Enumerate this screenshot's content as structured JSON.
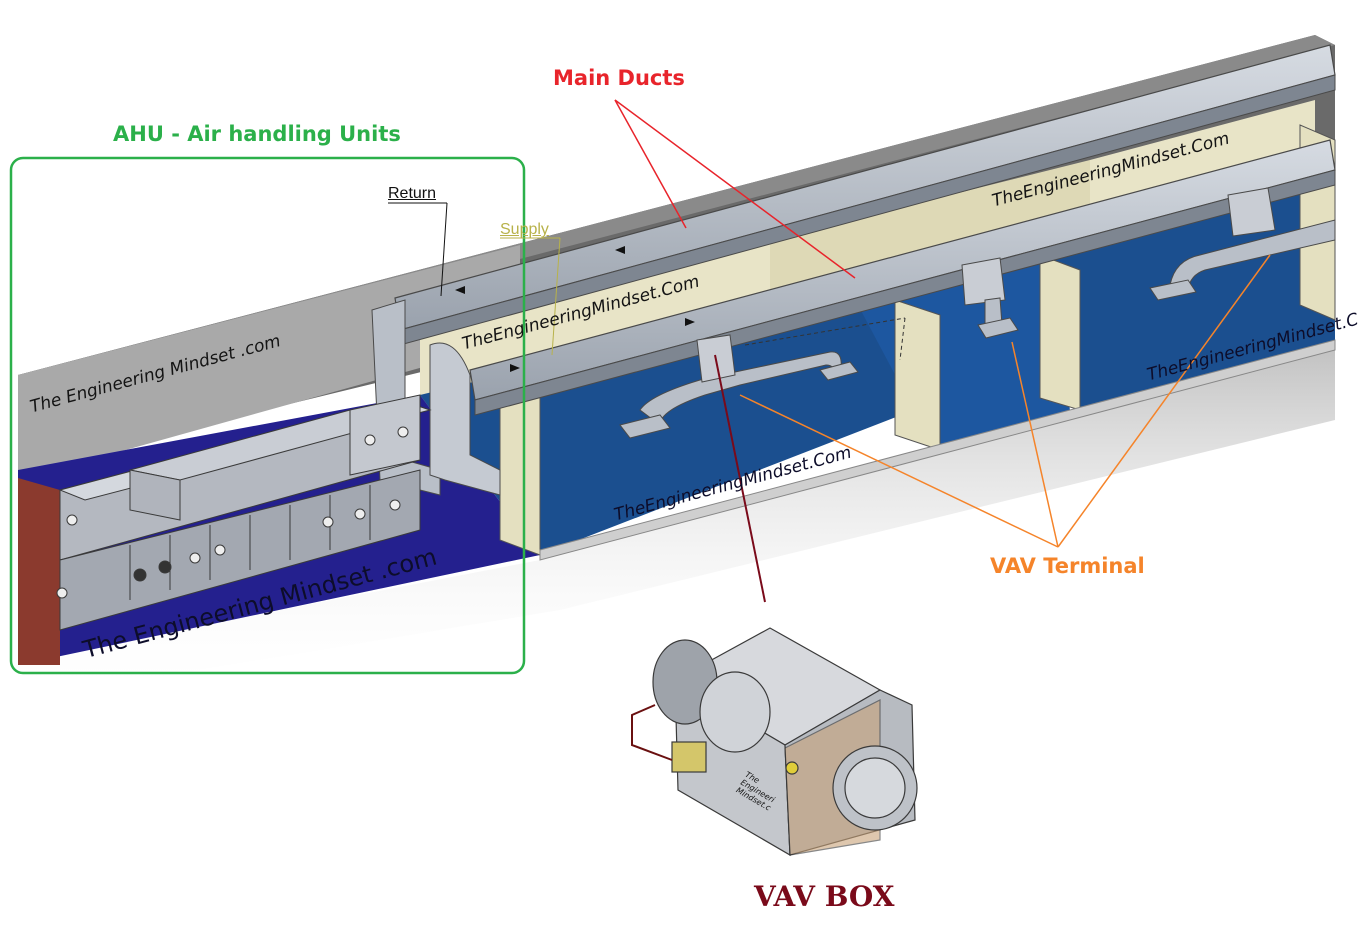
{
  "labels": {
    "ahu": "AHU - Air handling Units",
    "main_ducts": "Main Ducts",
    "vav_terminal": "VAV Terminal",
    "vav_box": "VAV BOX",
    "return": "Return",
    "supply": "Supply"
  },
  "watermarks": [
    "The Engineering Mindset .com",
    "TheEngineeringMindset.Com",
    "TheEngineeringMindset.Com",
    "TheEngineeringMindset.Com",
    "TheEngineeringMindset.Com",
    "The Engineering Mindset .com"
  ],
  "box_watermark": [
    "The",
    "Engineeri",
    "Mindset.c"
  ],
  "colors": {
    "ahu": "#2bb04a",
    "main_ducts": "#e8242b",
    "vav_terminal": "#f5842a",
    "vav_box": "#7a0a1a",
    "supply": "#b8b24a",
    "floor_blue": "#1b4f8f",
    "floor_dark": "#24208e",
    "duct": "#b9bfc8",
    "wall": "#e8e4c7"
  }
}
